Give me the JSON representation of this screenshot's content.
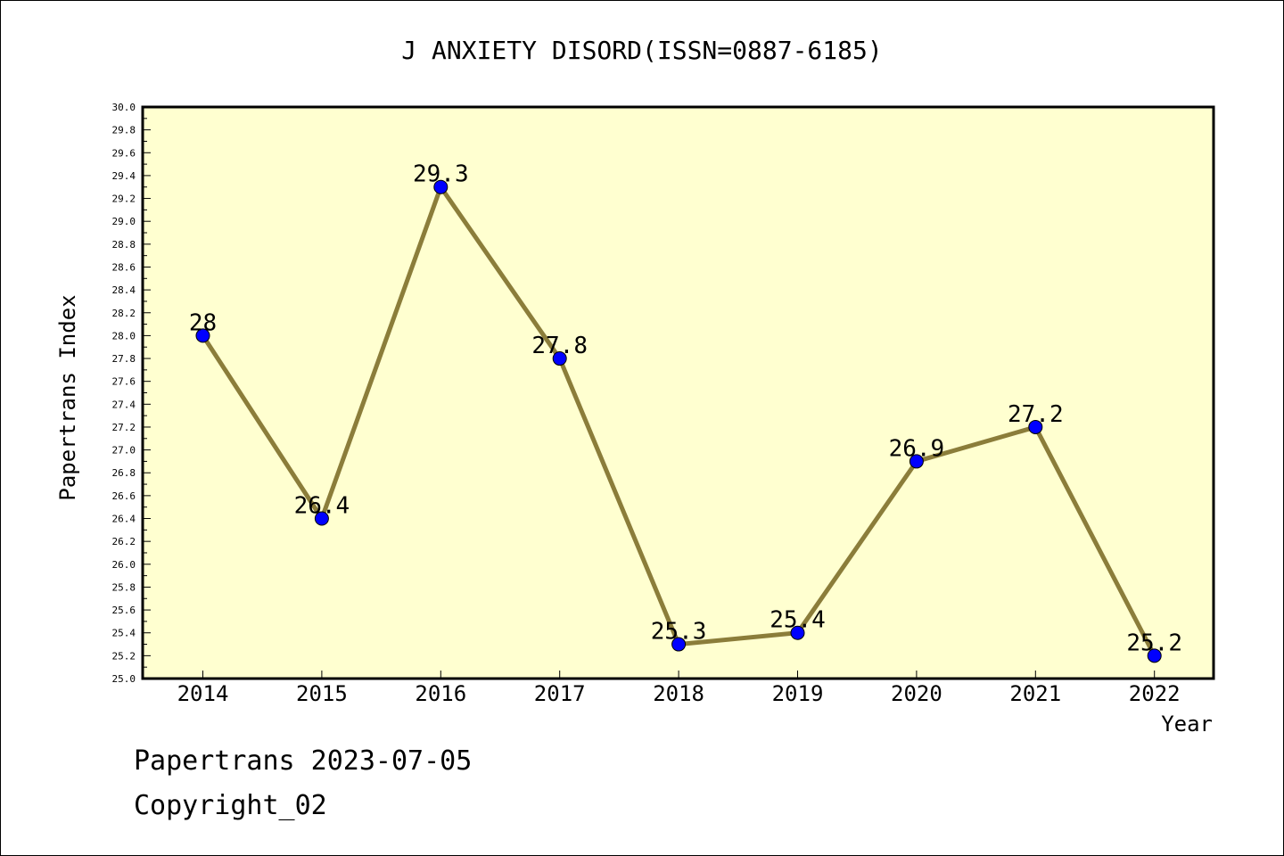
{
  "chart_data": {
    "type": "line",
    "title": "J ANXIETY DISORD(ISSN=0887-6185)",
    "xlabel": "Year",
    "ylabel": "Papertrans Index",
    "categories": [
      "2014",
      "2015",
      "2016",
      "2017",
      "2018",
      "2019",
      "2020",
      "2021",
      "2022"
    ],
    "series": [
      {
        "values": [
          28,
          26.4,
          29.3,
          27.8,
          25.3,
          25.4,
          26.9,
          27.2,
          25.2
        ],
        "data_labels": [
          "28",
          "26.4",
          "29.3",
          "27.8",
          "25.3",
          "25.4",
          "26.9",
          "27.2",
          "25.2"
        ],
        "line_color": "#8B7D3A",
        "marker_color": "#0000FF"
      }
    ],
    "ylim": [
      25.0,
      30.0
    ],
    "yticks": [
      "25.0",
      "25.2",
      "25.4",
      "25.6",
      "25.8",
      "26.0",
      "26.2",
      "26.4",
      "26.6",
      "26.8",
      "27.0",
      "27.2",
      "27.4",
      "27.6",
      "27.8",
      "28.0",
      "28.2",
      "28.4",
      "28.6",
      "28.8",
      "29.0",
      "29.2",
      "29.4",
      "29.6",
      "29.8",
      "30.0"
    ],
    "grid": false,
    "plot_background": "#FFFFD0"
  },
  "footer": {
    "line1": "Papertrans 2023-07-05",
    "line2": "Copyright_02"
  }
}
